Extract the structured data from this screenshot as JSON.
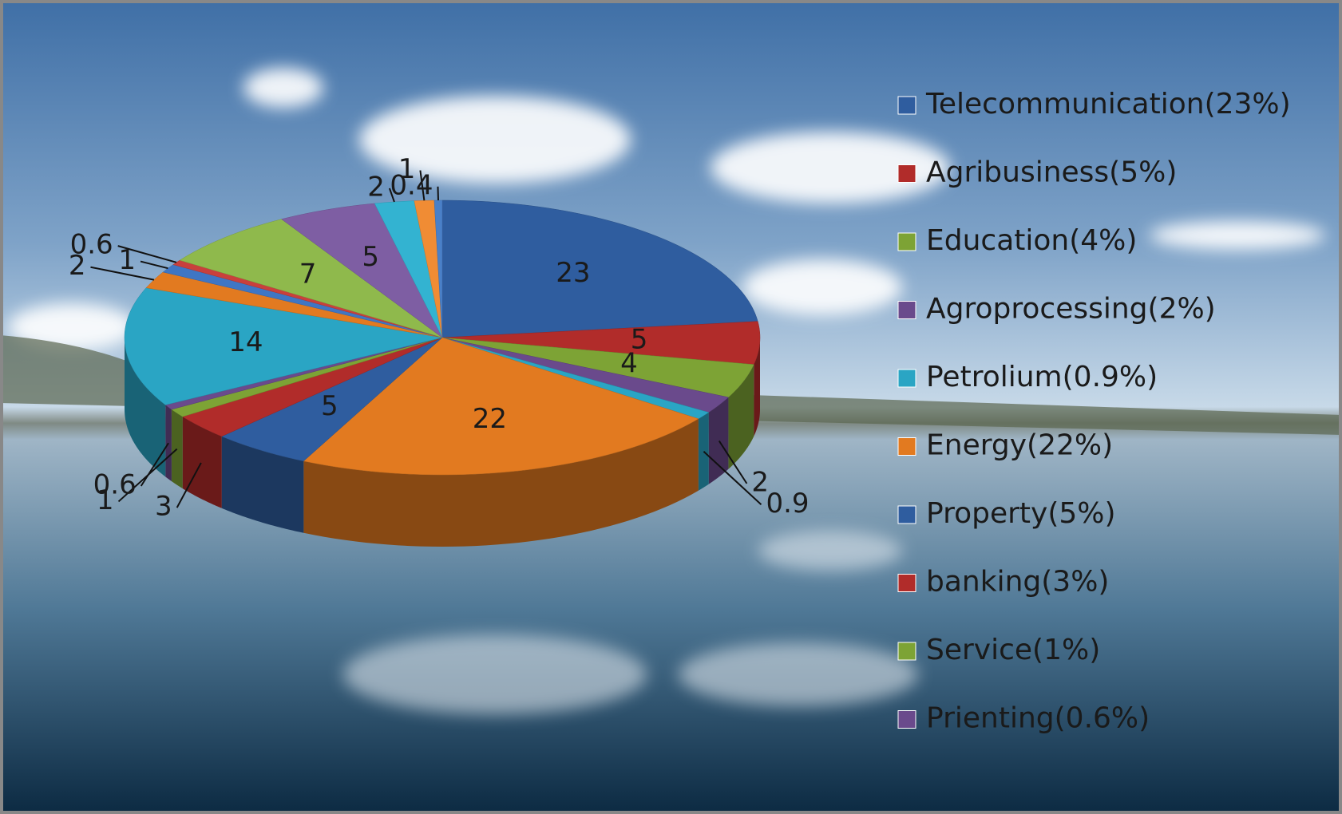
{
  "chart_data": {
    "type": "pie3d",
    "categories": [
      "Telecommunication(23%)",
      "Agribusiness(5%)",
      "Education(4%)",
      "Agroprocessing(2%)",
      "Petrolium(0.9%)",
      "Energy(22%)",
      "Property(5%)",
      "banking(3%)",
      "Service(1%)",
      "Prienting(0.6%)",
      null,
      null,
      null,
      null,
      null,
      null,
      null,
      null,
      null
    ],
    "values": [
      23,
      5,
      4,
      2,
      0.9,
      22,
      5,
      3,
      1,
      0.6,
      14,
      2,
      1,
      0.6,
      7,
      5,
      2,
      1,
      0.4
    ],
    "colors": [
      "#2f5d9f",
      "#b12c2a",
      "#7da335",
      "#6a4a8c",
      "#2aa5c4",
      "#e27a20",
      "#2f5d9f",
      "#b12c2a",
      "#7da335",
      "#6a4a8c",
      "#2aa5c4",
      "#e27a20",
      "#3f76c4",
      "#c9403c",
      "#8fb94c",
      "#7e5ea3",
      "#33b3d1",
      "#f08c34",
      "#4a80c8"
    ],
    "legend": "right"
  }
}
